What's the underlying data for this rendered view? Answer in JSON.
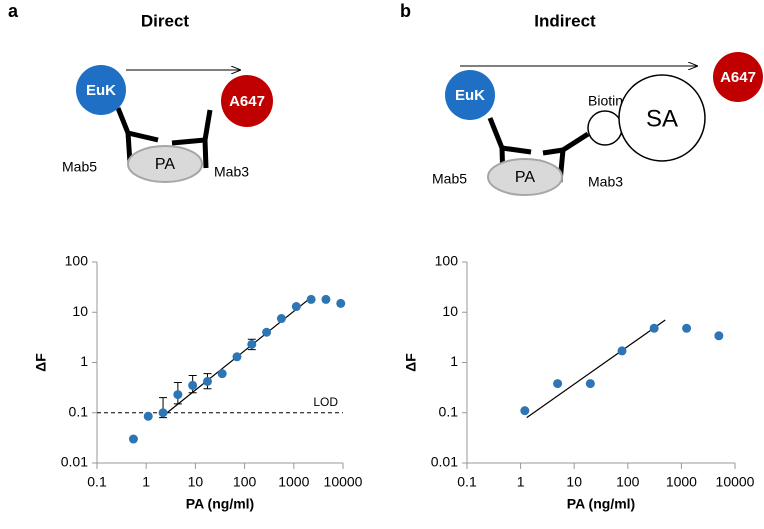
{
  "panels": [
    {
      "label": "a",
      "title": "Direct",
      "euk": "EuK",
      "acceptor": "A647",
      "mab_left": "Mab5",
      "antigen": "PA",
      "mab_right": "Mab3"
    },
    {
      "label": "b",
      "title": "Indirect",
      "euk": "EuK",
      "biotin": "Biotin",
      "sa": "SA",
      "acceptor": "A647",
      "mab_left": "Mab5",
      "antigen": "PA",
      "mab_right": "Mab3"
    }
  ],
  "chart_data": [
    {
      "type": "scatter",
      "xlabel": "PA (ng/ml)",
      "ylabel": "ΔF",
      "color": "#2e75b6",
      "log_x": true,
      "log_y": true,
      "x": [
        0.55,
        1.1,
        2.2,
        4.4,
        8.8,
        17.6,
        35,
        70,
        140,
        280,
        560,
        1125,
        2250,
        4500,
        9000
      ],
      "y": [
        0.03,
        0.085,
        0.1,
        0.23,
        0.35,
        0.42,
        0.6,
        1.3,
        2.3,
        4,
        7.5,
        13,
        18,
        18,
        15
      ],
      "err_low": [
        null,
        null,
        0.02,
        0.08,
        0.1,
        0.12,
        null,
        null,
        0.5,
        null,
        null,
        null,
        null,
        null,
        null
      ],
      "err_high": [
        null,
        null,
        0.1,
        0.17,
        0.2,
        0.18,
        null,
        null,
        0.6,
        null,
        null,
        null,
        null,
        null,
        null
      ],
      "fit": {
        "x": [
          2,
          2000
        ],
        "y": [
          0.08,
          18
        ]
      },
      "lod": {
        "value": 0.1,
        "label": "LOD"
      },
      "xlim": [
        0.1,
        10000
      ],
      "ylim": [
        0.01,
        100
      ],
      "xticks": [
        0.1,
        1,
        10,
        100,
        1000,
        10000
      ],
      "yticks": [
        0.01,
        0.1,
        1,
        10,
        100
      ]
    },
    {
      "type": "scatter",
      "xlabel": "PA (ng/ml)",
      "ylabel": "ΔF",
      "color": "#2e75b6",
      "log_x": true,
      "log_y": true,
      "x": [
        1.2,
        4.9,
        20,
        78,
        310,
        1250,
        5000
      ],
      "y": [
        0.11,
        0.38,
        0.38,
        1.7,
        4.8,
        4.8,
        3.4
      ],
      "fit": {
        "x": [
          1.3,
          500
        ],
        "y": [
          0.08,
          7
        ]
      },
      "xlim": [
        0.1,
        10000
      ],
      "ylim": [
        0.01,
        100
      ],
      "xticks": [
        0.1,
        1,
        10,
        100,
        1000,
        10000
      ],
      "yticks": [
        0.01,
        0.1,
        1,
        10,
        100
      ]
    }
  ]
}
